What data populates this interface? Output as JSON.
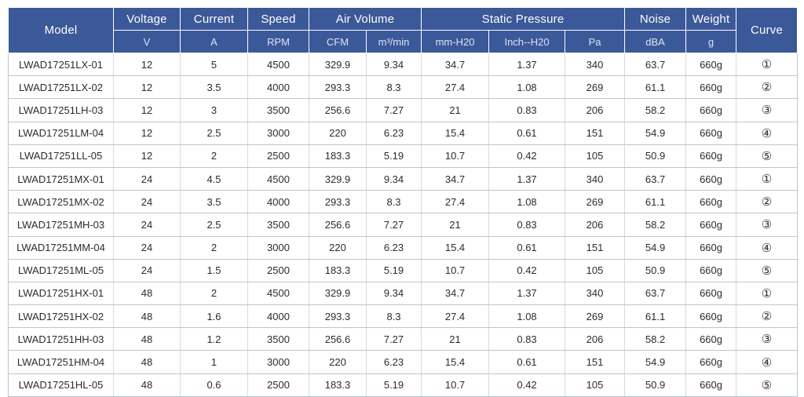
{
  "headers": {
    "model": "Model",
    "voltage": "Voltage",
    "current": "Current",
    "speed": "Speed",
    "air_volume": "Air Volume",
    "static_pressure": "Static Pressure",
    "noise": "Noise",
    "weight": "Weight",
    "curve": "Curve"
  },
  "units": {
    "voltage": "V",
    "current": "A",
    "speed": "RPM",
    "cfm": "CFM",
    "m3min": "m³/min",
    "mmh2o": "mm-H20",
    "inchh2o": "Inch--H20",
    "pa": "Pa",
    "noise": "dBA",
    "weight": "g"
  },
  "rows": [
    [
      "LWAD17251LX-01",
      "12",
      "5",
      "4500",
      "329.9",
      "9.34",
      "34.7",
      "1.37",
      "340",
      "63.7",
      "660g",
      "①"
    ],
    [
      "LWAD17251LX-02",
      "12",
      "3.5",
      "4000",
      "293.3",
      "8.3",
      "27.4",
      "1.08",
      "269",
      "61.1",
      "660g",
      "②"
    ],
    [
      "LWAD17251LH-03",
      "12",
      "3",
      "3500",
      "256.6",
      "7.27",
      "21",
      "0.83",
      "206",
      "58.2",
      "660g",
      "③"
    ],
    [
      "LWAD17251LM-04",
      "12",
      "2.5",
      "3000",
      "220",
      "6.23",
      "15.4",
      "0.61",
      "151",
      "54.9",
      "660g",
      "④"
    ],
    [
      "LWAD17251LL-05",
      "12",
      "2",
      "2500",
      "183.3",
      "5.19",
      "10.7",
      "0.42",
      "105",
      "50.9",
      "660g",
      "⑤"
    ],
    [
      "LWAD17251MX-01",
      "24",
      "4.5",
      "4500",
      "329.9",
      "9.34",
      "34.7",
      "1.37",
      "340",
      "63.7",
      "660g",
      "①"
    ],
    [
      "LWAD17251MX-02",
      "24",
      "3.5",
      "4000",
      "293.3",
      "8.3",
      "27.4",
      "1.08",
      "269",
      "61.1",
      "660g",
      "②"
    ],
    [
      "LWAD17251MH-03",
      "24",
      "2.5",
      "3500",
      "256.6",
      "7.27",
      "21",
      "0.83",
      "206",
      "58.2",
      "660g",
      "③"
    ],
    [
      "LWAD17251MM-04",
      "24",
      "2",
      "3000",
      "220",
      "6.23",
      "15.4",
      "0.61",
      "151",
      "54.9",
      "660g",
      "④"
    ],
    [
      "LWAD17251ML-05",
      "24",
      "1.5",
      "2500",
      "183.3",
      "5.19",
      "10.7",
      "0.42",
      "105",
      "50.9",
      "660g",
      "⑤"
    ],
    [
      "LWAD17251HX-01",
      "48",
      "2",
      "4500",
      "329.9",
      "9.34",
      "34.7",
      "1.37",
      "340",
      "63.7",
      "660g",
      "①"
    ],
    [
      "LWAD17251HX-02",
      "48",
      "1.6",
      "4000",
      "293.3",
      "8.3",
      "27.4",
      "1.08",
      "269",
      "61.1",
      "660g",
      "②"
    ],
    [
      "LWAD17251HH-03",
      "48",
      "1.2",
      "3500",
      "256.6",
      "7.27",
      "21",
      "0.83",
      "206",
      "58.2",
      "660g",
      "③"
    ],
    [
      "LWAD17251HM-04",
      "48",
      "1",
      "3000",
      "220",
      "6.23",
      "15.4",
      "0.61",
      "151",
      "54.9",
      "660g",
      "④"
    ],
    [
      "LWAD17251HL-05",
      "48",
      "0.6",
      "2500",
      "183.3",
      "5.19",
      "10.7",
      "0.42",
      "105",
      "50.9",
      "660g",
      "⑤"
    ]
  ],
  "colors": {
    "header_bg": "#3b5898",
    "header_text": "#ffffff",
    "row_border": "#bfc5cf"
  }
}
